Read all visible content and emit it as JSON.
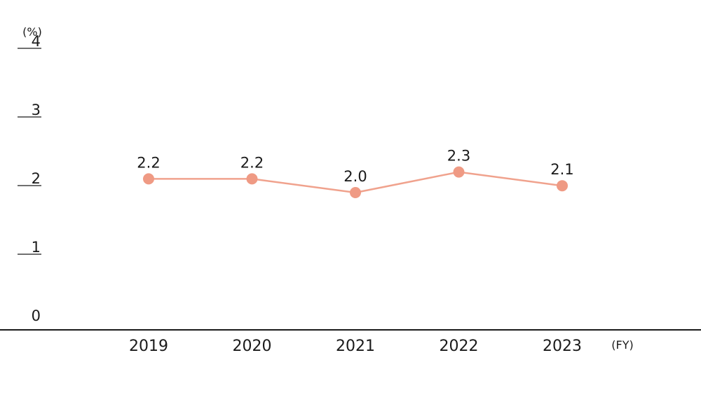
{
  "chart_data": {
    "type": "line",
    "categories": [
      "2019",
      "2020",
      "2021",
      "2022",
      "2023"
    ],
    "values": [
      2.2,
      2.2,
      2.0,
      2.3,
      2.1
    ],
    "value_labels": [
      "2.2",
      "2.2",
      "2.0",
      "2.3",
      "2.1"
    ],
    "y_unit": "(%)",
    "x_unit": "(FY)",
    "ylim": [
      0,
      4
    ],
    "y_ticks": [
      "0",
      "1",
      "2",
      "3",
      "4"
    ],
    "line_color": "#f0a28d",
    "marker_color": "#ef9a84",
    "axis_color": "#1a1a1a",
    "grid": false
  }
}
